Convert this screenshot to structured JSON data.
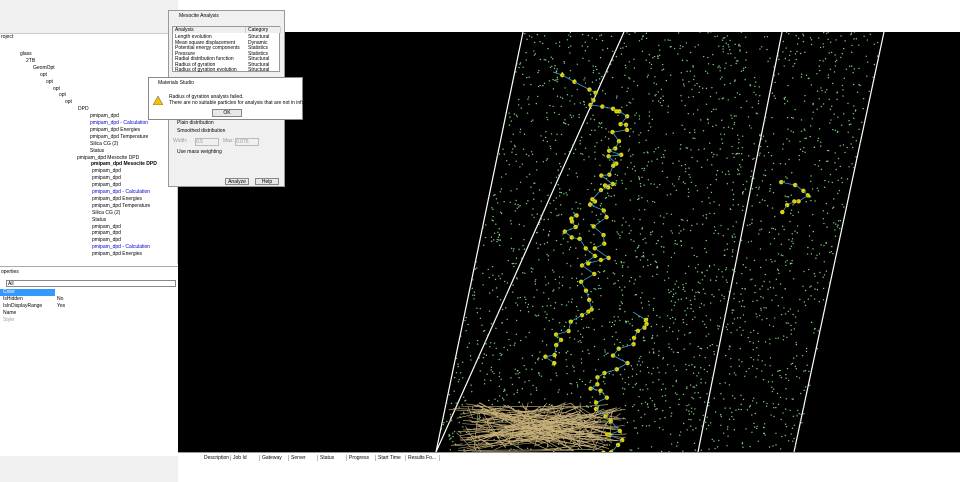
{
  "project": {
    "title": "roject",
    "tree": [
      "glass",
      "2TB",
      "GeomOpt",
      "opt",
      "opt",
      "opt",
      "opt",
      "opt",
      "DPD",
      "pmipam_dpd",
      "pmipam_dpd - Calculation",
      "pmipam_dpd Energies",
      "pmipam_dpd Temperature",
      "Silica CG (2)",
      "Status",
      "pmipam_dpd Mesocite DPD",
      "pmipam_dpd Mesocite DPD",
      "pmipam_dpd",
      "pmipam_dpd",
      "pmipam_dpd",
      "pmipam_dpd - Calculation",
      "pmipam_dpd Energies",
      "pmipam_dpd Temperature",
      "Silica CG (2)",
      "Status",
      "pmipam_dpd",
      "pmipam_dpd",
      "pmipam_dpd",
      "pmipam_dpd - Calculation",
      "pmipam_dpd Energies"
    ]
  },
  "properties": {
    "title": "operties",
    "filter": "All",
    "rows": [
      [
        "Color",
        ""
      ],
      [
        "IsHidden",
        "No"
      ],
      [
        "IsInDisplayRange",
        "Yes"
      ],
      [
        "Name",
        ""
      ],
      [
        "Style",
        ""
      ]
    ]
  },
  "analysis_dialog": {
    "title": "Mesocite Analysis",
    "columns": [
      "Analysis",
      "Category"
    ],
    "rows": [
      [
        "Length evolution",
        "Structural"
      ],
      [
        "Mean square displacement",
        "Dynamic"
      ],
      [
        "Potential energy components",
        "Statistics"
      ],
      [
        "Pressure",
        "Statistics"
      ],
      [
        "Radial distribution function",
        "Structural"
      ],
      [
        "Radius of gyration",
        "Structural"
      ],
      [
        "Radius of gyration evolution",
        "Structural"
      ]
    ],
    "plain": "Plain distribution",
    "smoothed": "Smoothed distribution",
    "width_label": "Width:",
    "width_value": "0.5",
    "max_label": "Max:",
    "max_value": "0.075",
    "mass": "Use mass weighting",
    "analyze": "Analyze",
    "help": "Help"
  },
  "message_box": {
    "title": "Materials Studio",
    "line1": "Radius of gyration analysis failed.",
    "line2": "There are no suitable particles for analysis that are not in infinite networks.",
    "ok": "OK"
  },
  "jobs": {
    "columns": [
      "Description",
      "Job Id",
      "Gateway",
      "Server",
      "Status",
      "Progress",
      "Start Time",
      "Results Fo..."
    ]
  }
}
